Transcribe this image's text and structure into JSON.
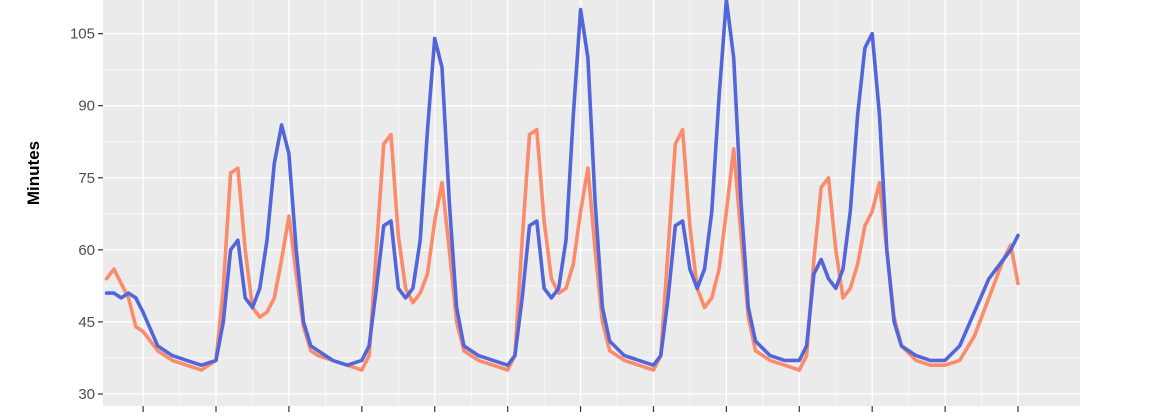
{
  "chart_data": {
    "type": "line",
    "title": "",
    "xlabel": "",
    "ylabel": "Minutes",
    "ylim": [
      27.5,
      112
    ],
    "xlim": [
      0.45,
      13.85
    ],
    "yticks": [
      30,
      45,
      60,
      75,
      90,
      105
    ],
    "ytick_labels": [
      "30",
      "45",
      "60",
      "75",
      "90",
      "105"
    ],
    "xticks": [
      1,
      2,
      3,
      4,
      5,
      6,
      7,
      8,
      9,
      10,
      11,
      12,
      13
    ],
    "grid": true,
    "legend": "none",
    "colors": {
      "panel": "#ebebeb",
      "grid": "#ffffff",
      "tick": "#333333",
      "series_a": "#fa8b6b",
      "series_b": "#5366d9"
    },
    "series": [
      {
        "color": "#fa8b6b",
        "x": [
          0.5,
          0.6,
          0.7,
          0.8,
          0.9,
          1.0,
          1.2,
          1.4,
          1.6,
          1.8,
          2.0,
          2.1,
          2.2,
          2.3,
          2.4,
          2.5,
          2.6,
          2.7,
          2.8,
          2.9,
          3.0,
          3.1,
          3.2,
          3.3,
          3.4,
          3.6,
          3.8,
          4.0,
          4.1,
          4.2,
          4.3,
          4.4,
          4.5,
          4.6,
          4.7,
          4.8,
          4.9,
          5.0,
          5.1,
          5.2,
          5.3,
          5.4,
          5.6,
          5.8,
          6.0,
          6.1,
          6.2,
          6.3,
          6.4,
          6.5,
          6.6,
          6.7,
          6.8,
          6.9,
          7.0,
          7.1,
          7.2,
          7.3,
          7.4,
          7.6,
          7.8,
          8.0,
          8.1,
          8.2,
          8.3,
          8.4,
          8.5,
          8.6,
          8.7,
          8.8,
          8.9,
          9.0,
          9.1,
          9.2,
          9.3,
          9.4,
          9.6,
          9.8,
          10.0,
          10.1,
          10.2,
          10.3,
          10.4,
          10.5,
          10.6,
          10.7,
          10.8,
          10.9,
          11.0,
          11.1,
          11.2,
          11.3,
          11.4,
          11.6,
          11.8,
          12.0,
          12.2,
          12.4,
          12.6,
          12.8,
          12.9,
          13.0
        ],
        "y": [
          54,
          56,
          53,
          50,
          44,
          43,
          39,
          37,
          36,
          35,
          37,
          52,
          76,
          77,
          60,
          48,
          46,
          47,
          50,
          58,
          67,
          55,
          44,
          39,
          38,
          37,
          36,
          35,
          38,
          60,
          82,
          84,
          63,
          52,
          49,
          51,
          55,
          66,
          74,
          60,
          45,
          39,
          37,
          36,
          35,
          38,
          62,
          84,
          85,
          66,
          54,
          51,
          52,
          57,
          68,
          77,
          60,
          45,
          39,
          37,
          36,
          35,
          38,
          60,
          82,
          85,
          65,
          52,
          48,
          50,
          56,
          68,
          81,
          63,
          46,
          39,
          37,
          36,
          35,
          38,
          58,
          73,
          75,
          60,
          50,
          52,
          57,
          65,
          68,
          74,
          60,
          46,
          40,
          37,
          36,
          36,
          37,
          42,
          50,
          58,
          61,
          53
        ]
      },
      {
        "color": "#5366d9",
        "x": [
          0.5,
          0.6,
          0.7,
          0.8,
          0.9,
          1.0,
          1.2,
          1.4,
          1.6,
          1.8,
          2.0,
          2.1,
          2.2,
          2.3,
          2.4,
          2.5,
          2.6,
          2.7,
          2.8,
          2.9,
          3.0,
          3.1,
          3.2,
          3.3,
          3.4,
          3.6,
          3.8,
          4.0,
          4.1,
          4.2,
          4.3,
          4.4,
          4.5,
          4.6,
          4.7,
          4.8,
          4.9,
          5.0,
          5.1,
          5.2,
          5.3,
          5.4,
          5.6,
          5.8,
          6.0,
          6.1,
          6.2,
          6.3,
          6.4,
          6.5,
          6.6,
          6.7,
          6.8,
          6.9,
          7.0,
          7.1,
          7.2,
          7.3,
          7.4,
          7.6,
          7.8,
          8.0,
          8.1,
          8.2,
          8.3,
          8.4,
          8.5,
          8.6,
          8.7,
          8.8,
          8.9,
          9.0,
          9.1,
          9.2,
          9.3,
          9.4,
          9.6,
          9.8,
          10.0,
          10.1,
          10.2,
          10.3,
          10.4,
          10.5,
          10.6,
          10.7,
          10.8,
          10.9,
          11.0,
          11.1,
          11.2,
          11.3,
          11.4,
          11.6,
          11.8,
          12.0,
          12.2,
          12.4,
          12.6,
          12.8,
          12.9,
          13.0
        ],
        "y": [
          51,
          51,
          50,
          51,
          50,
          47,
          40,
          38,
          37,
          36,
          37,
          45,
          60,
          62,
          50,
          48,
          52,
          62,
          78,
          86,
          80,
          60,
          45,
          40,
          39,
          37,
          36,
          37,
          40,
          52,
          65,
          66,
          52,
          50,
          52,
          62,
          85,
          104,
          98,
          70,
          48,
          40,
          38,
          37,
          36,
          38,
          50,
          65,
          66,
          52,
          50,
          52,
          62,
          88,
          110,
          100,
          70,
          48,
          41,
          38,
          37,
          36,
          38,
          50,
          65,
          66,
          56,
          52,
          56,
          68,
          92,
          112,
          100,
          70,
          48,
          41,
          38,
          37,
          37,
          40,
          55,
          58,
          54,
          52,
          56,
          68,
          88,
          102,
          105,
          88,
          60,
          45,
          40,
          38,
          37,
          37,
          40,
          47,
          54,
          58,
          60,
          63
        ]
      }
    ]
  }
}
